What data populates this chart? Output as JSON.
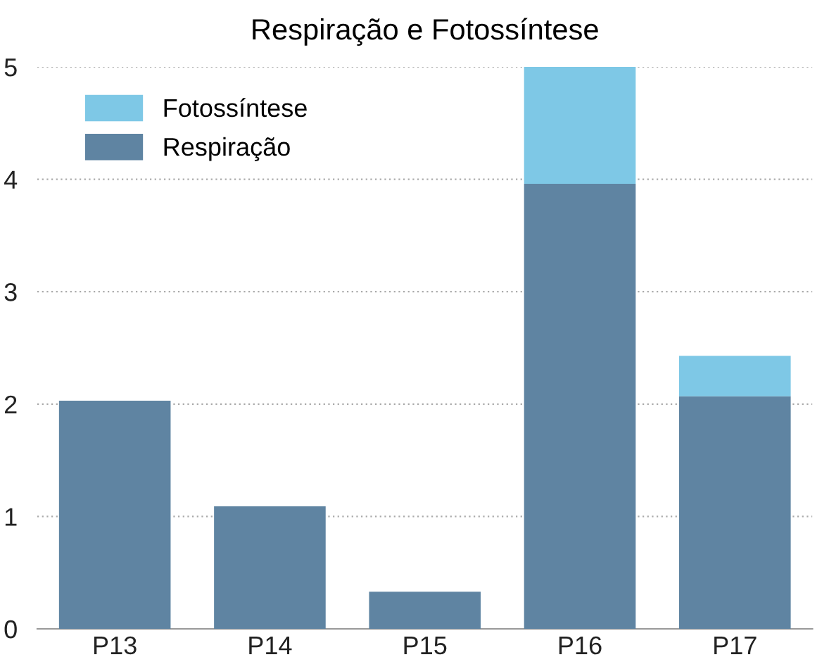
{
  "chart_data": {
    "type": "bar",
    "title": "Respiração e Fotossíntese",
    "categories": [
      "P13",
      "P14",
      "P15",
      "P16",
      "P17"
    ],
    "stacked": true,
    "series": [
      {
        "name": "Respiração",
        "color": "#5f84a2",
        "values": [
          2.03,
          1.09,
          0.33,
          3.96,
          2.07
        ]
      },
      {
        "name": "Fotossíntese",
        "color": "#7ec8e6",
        "values": [
          0,
          0,
          0,
          1.04,
          0.36
        ]
      }
    ],
    "ylim": [
      0,
      5
    ],
    "yticks": [
      0,
      1,
      2,
      3,
      4,
      5
    ],
    "grid": "y",
    "legend": "top left"
  }
}
